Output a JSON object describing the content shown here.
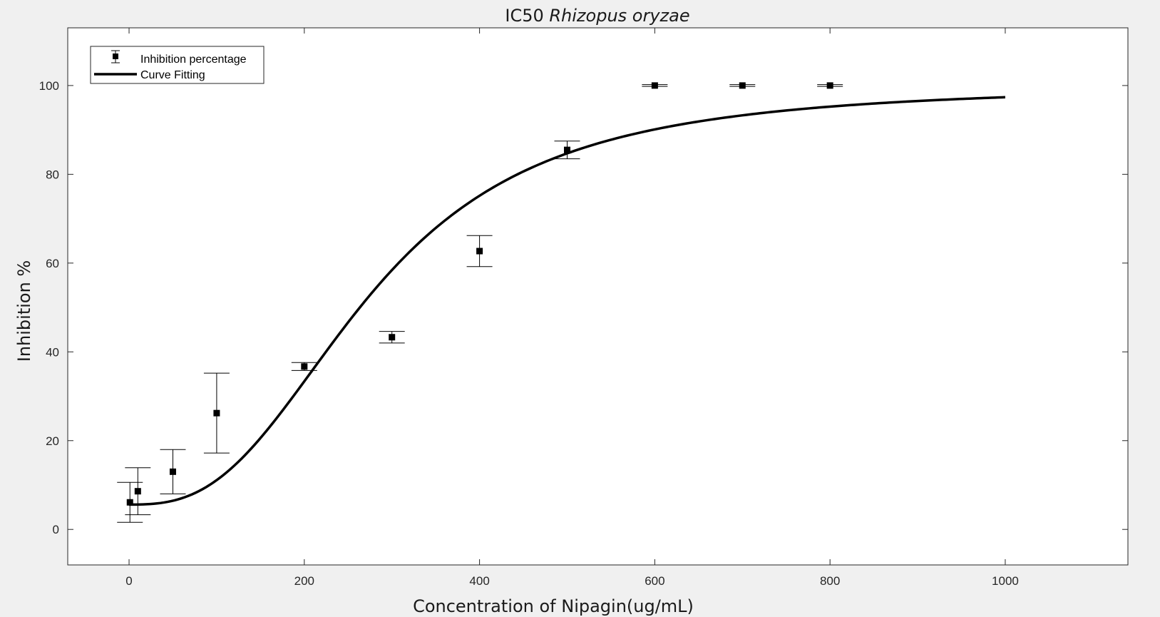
{
  "chart_data": {
    "type": "scatter",
    "title": {
      "prefix": "IC50 ",
      "italic": "Rhizopus oryzae"
    },
    "xlabel": "Concentration of Nipagin(ug/mL)",
    "ylabel": "Inhibition %",
    "xlim": [
      -70,
      1140
    ],
    "ylim": [
      -8,
      113
    ],
    "xticks": [
      0,
      200,
      400,
      600,
      800,
      1000
    ],
    "yticks": [
      0,
      20,
      40,
      60,
      80,
      100
    ],
    "grid": false,
    "legend": {
      "placement": "top-left",
      "entries": [
        "Inhibition percentage",
        "Curve Fitting"
      ]
    },
    "series": [
      {
        "name": "Inhibition percentage",
        "kind": "errorbar",
        "x": [
          1,
          10,
          50,
          100,
          200,
          300,
          400,
          500,
          600,
          700,
          800
        ],
        "y": [
          6.1,
          8.6,
          13.0,
          26.2,
          36.7,
          43.3,
          62.7,
          85.5,
          100,
          100,
          100
        ],
        "err": [
          4.5,
          5.3,
          5.0,
          9.0,
          0.9,
          1.3,
          3.5,
          2.0,
          0.2,
          0.2,
          0.2
        ],
        "color": "#000000"
      },
      {
        "name": "Curve Fitting",
        "kind": "line",
        "model": "4PL",
        "bottom": 5.6,
        "top": 100,
        "ic50": 275,
        "hill": 2.75,
        "x_range": [
          0,
          1000
        ],
        "color": "#000000"
      }
    ]
  }
}
